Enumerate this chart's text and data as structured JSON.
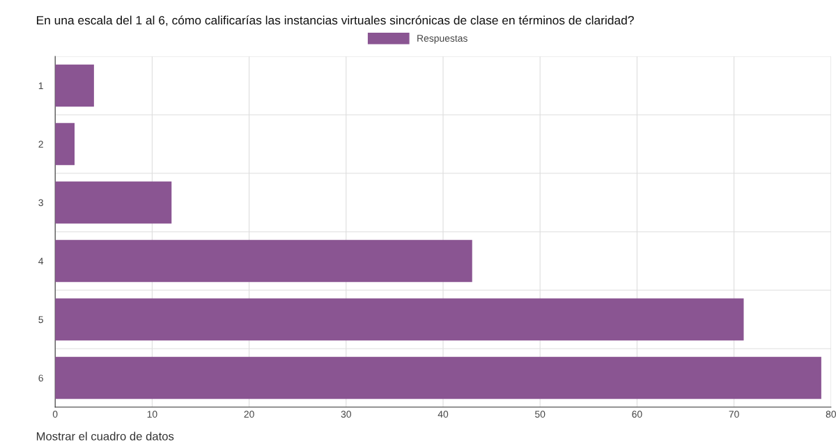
{
  "chart_data": {
    "type": "bar",
    "orientation": "horizontal",
    "title": "En una escala del 1 al 6, cómo calificarías las instancias virtuales sincrónicas de clase en términos de claridad?",
    "categories": [
      "1",
      "2",
      "3",
      "4",
      "5",
      "6"
    ],
    "series": [
      {
        "name": "Respuestas",
        "color": "#8a5592",
        "values": [
          4,
          2,
          12,
          43,
          71,
          79
        ]
      }
    ],
    "xlim": [
      0,
      80
    ],
    "xticks": [
      0,
      10,
      20,
      30,
      40,
      50,
      60,
      70,
      80
    ],
    "grid": "x",
    "legend": "top",
    "annotations": [
      "Mostrar el cuadro de datos"
    ]
  }
}
